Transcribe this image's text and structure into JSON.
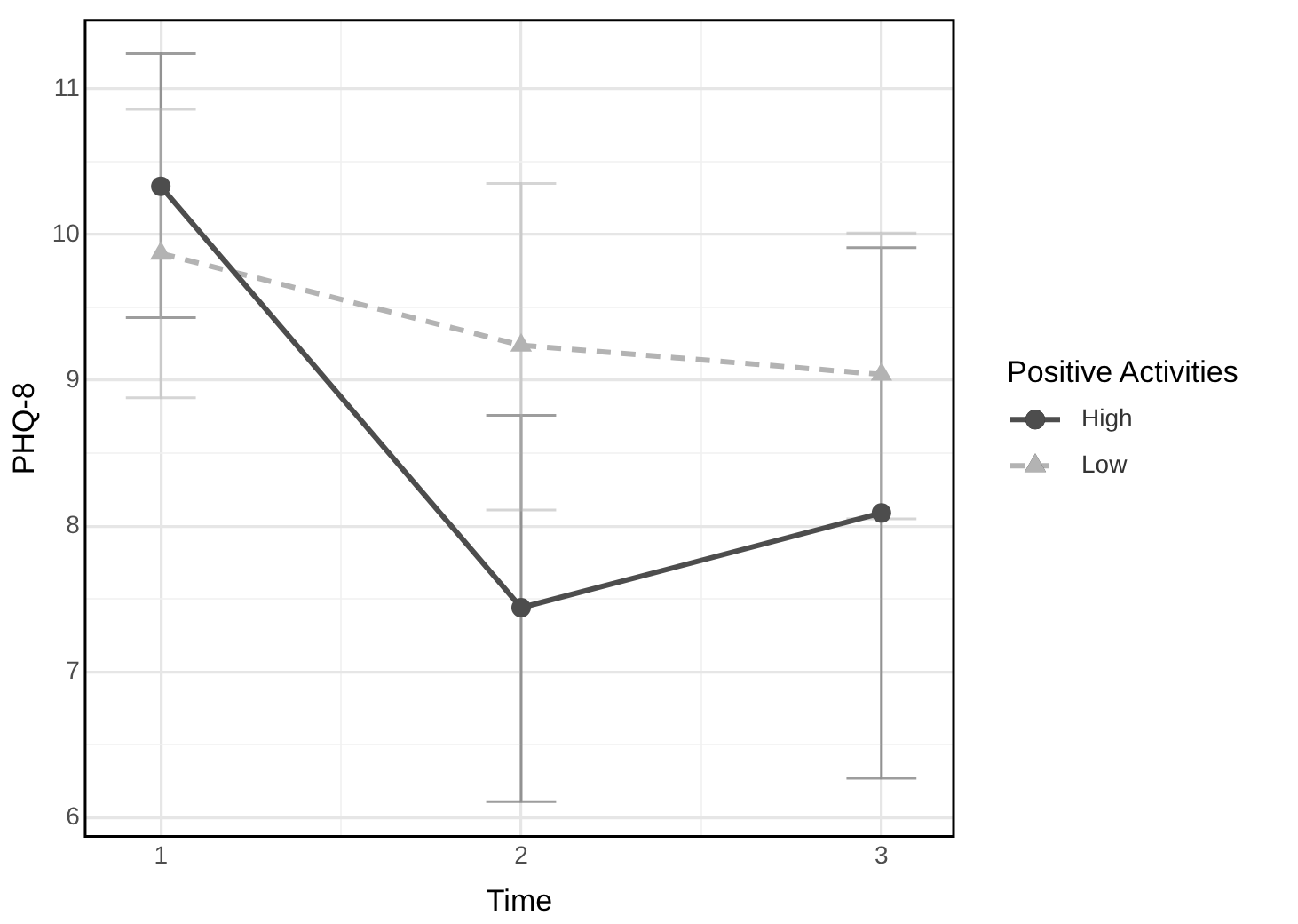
{
  "chart_data": {
    "type": "line",
    "xlabel": "Time",
    "ylabel": "PHQ-8",
    "legend_title": "Positive Activities",
    "legend": "right",
    "grid": true,
    "x": [
      1,
      2,
      3
    ],
    "xlim": [
      0.79,
      3.2
    ],
    "xticks": [
      1,
      {
        "value": 1.5,
        "label": null
      },
      2,
      {
        "value": 2.5,
        "label": null
      },
      3
    ],
    "ylim": [
      5.87,
      11.47
    ],
    "yticks": [
      6,
      {
        "value": 6.5,
        "label": null
      },
      7,
      {
        "value": 7.5,
        "label": null
      },
      8,
      {
        "value": 8.5,
        "label": null
      },
      9,
      {
        "value": 9.5,
        "label": null
      },
      10,
      {
        "value": 10.5,
        "label": null
      },
      11
    ],
    "series": [
      {
        "name": "High",
        "color": "#4d4d4d",
        "marker": "circle",
        "line_style": "solid",
        "values": [
          10.33,
          7.44,
          8.09
        ],
        "errors": [
          [
            9.43,
            11.24
          ],
          [
            6.11,
            8.76
          ],
          [
            6.27,
            9.91
          ]
        ]
      },
      {
        "name": "Low",
        "color": "#b3b3b3",
        "marker": "triangle",
        "line_style": "dashed",
        "values": [
          9.87,
          9.24,
          9.04
        ],
        "errors": [
          [
            8.88,
            10.86
          ],
          [
            8.11,
            10.35
          ],
          [
            8.05,
            10.01
          ]
        ]
      }
    ]
  }
}
